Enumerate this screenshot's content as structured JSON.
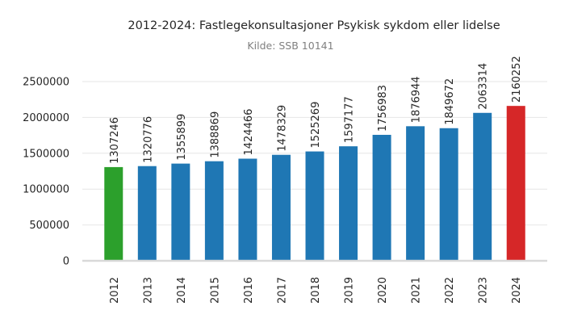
{
  "chart_data": {
    "type": "bar",
    "title": "2012-2024: Fastlegekonsultasjoner Psykisk sykdom eller lidelse",
    "subtitle": "Kilde: SSB 10141",
    "xlabel": "",
    "ylabel": "",
    "categories": [
      "2012",
      "2013",
      "2014",
      "2015",
      "2016",
      "2017",
      "2018",
      "2019",
      "2020",
      "2021",
      "2022",
      "2023",
      "2024"
    ],
    "values": [
      1307246,
      1320776,
      1355899,
      1388869,
      1424466,
      1478329,
      1525269,
      1597177,
      1756983,
      1876944,
      1849672,
      2063314,
      2160252
    ],
    "bar_colors": [
      "#2ca02c",
      "#1f77b4",
      "#1f77b4",
      "#1f77b4",
      "#1f77b4",
      "#1f77b4",
      "#1f77b4",
      "#1f77b4",
      "#1f77b4",
      "#1f77b4",
      "#1f77b4",
      "#1f77b4",
      "#d62728"
    ],
    "ylim": [
      0,
      2500000
    ],
    "yticks": [
      0,
      500000,
      1000000,
      1500000,
      2000000,
      2500000
    ],
    "grid": true,
    "legend": "none"
  }
}
